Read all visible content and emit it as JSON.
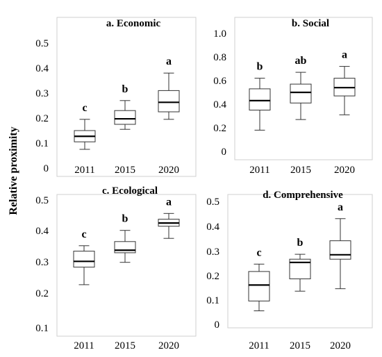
{
  "y_axis_title": "Relative proximity",
  "chart_data": [
    {
      "type": "box",
      "title": "a. Economic",
      "categories": [
        "2011",
        "2015",
        "2020"
      ],
      "ylim": [
        0,
        0.5
      ],
      "yticks": [
        "0",
        "0.1",
        "0.2",
        "0.3",
        "0.4",
        "0.5"
      ],
      "boxes": [
        {
          "min": 0.075,
          "q1": 0.105,
          "median": 0.127,
          "q3": 0.15,
          "max": 0.195
        },
        {
          "min": 0.155,
          "q1": 0.175,
          "median": 0.197,
          "q3": 0.23,
          "max": 0.27
        },
        {
          "min": 0.195,
          "q1": 0.225,
          "median": 0.263,
          "q3": 0.31,
          "max": 0.38
        }
      ],
      "letters": [
        "c",
        "b",
        "a"
      ]
    },
    {
      "type": "box",
      "title": "b. Social",
      "categories": [
        "2011",
        "2015",
        "2020"
      ],
      "ylim": [
        0,
        1.0
      ],
      "yticks": [
        "0",
        "0.2",
        "0.4",
        "0.6",
        "0.8",
        "1.0"
      ],
      "boxes": [
        {
          "min": 0.18,
          "q1": 0.35,
          "median": 0.43,
          "q3": 0.53,
          "max": 0.62
        },
        {
          "min": 0.27,
          "q1": 0.41,
          "median": 0.5,
          "q3": 0.57,
          "max": 0.67
        },
        {
          "min": 0.31,
          "q1": 0.47,
          "median": 0.54,
          "q3": 0.62,
          "max": 0.72
        }
      ],
      "letters": [
        "b",
        "ab",
        "a"
      ]
    },
    {
      "type": "box",
      "title": "c. Ecological",
      "categories": [
        "2011",
        "2015",
        "2020"
      ],
      "ylim": [
        0.1,
        0.5
      ],
      "yticks": [
        "0.1",
        "0.2",
        "0.3",
        "0.4",
        "0.5"
      ],
      "boxes": [
        {
          "min": 0.235,
          "q1": 0.29,
          "median": 0.308,
          "q3": 0.34,
          "max": 0.357
        },
        {
          "min": 0.305,
          "q1": 0.335,
          "median": 0.343,
          "q3": 0.37,
          "max": 0.405
        },
        {
          "min": 0.38,
          "q1": 0.418,
          "median": 0.428,
          "q3": 0.44,
          "max": 0.458
        }
      ],
      "letters": [
        "c",
        "b",
        "a"
      ]
    },
    {
      "type": "box",
      "title": "d. Comprehensive",
      "categories": [
        "2011",
        "2015",
        "2020"
      ],
      "ylim": [
        0,
        0.5
      ],
      "yticks": [
        "0",
        "0.1",
        "0.2",
        "0.3",
        "0.4",
        "0.5"
      ],
      "boxes": [
        {
          "min": 0.055,
          "q1": 0.095,
          "median": 0.16,
          "q3": 0.215,
          "max": 0.245
        },
        {
          "min": 0.135,
          "q1": 0.185,
          "median": 0.252,
          "q3": 0.265,
          "max": 0.285
        },
        {
          "min": 0.145,
          "q1": 0.265,
          "median": 0.283,
          "q3": 0.34,
          "max": 0.43
        }
      ],
      "letters": [
        "c",
        "b",
        "a"
      ]
    }
  ]
}
